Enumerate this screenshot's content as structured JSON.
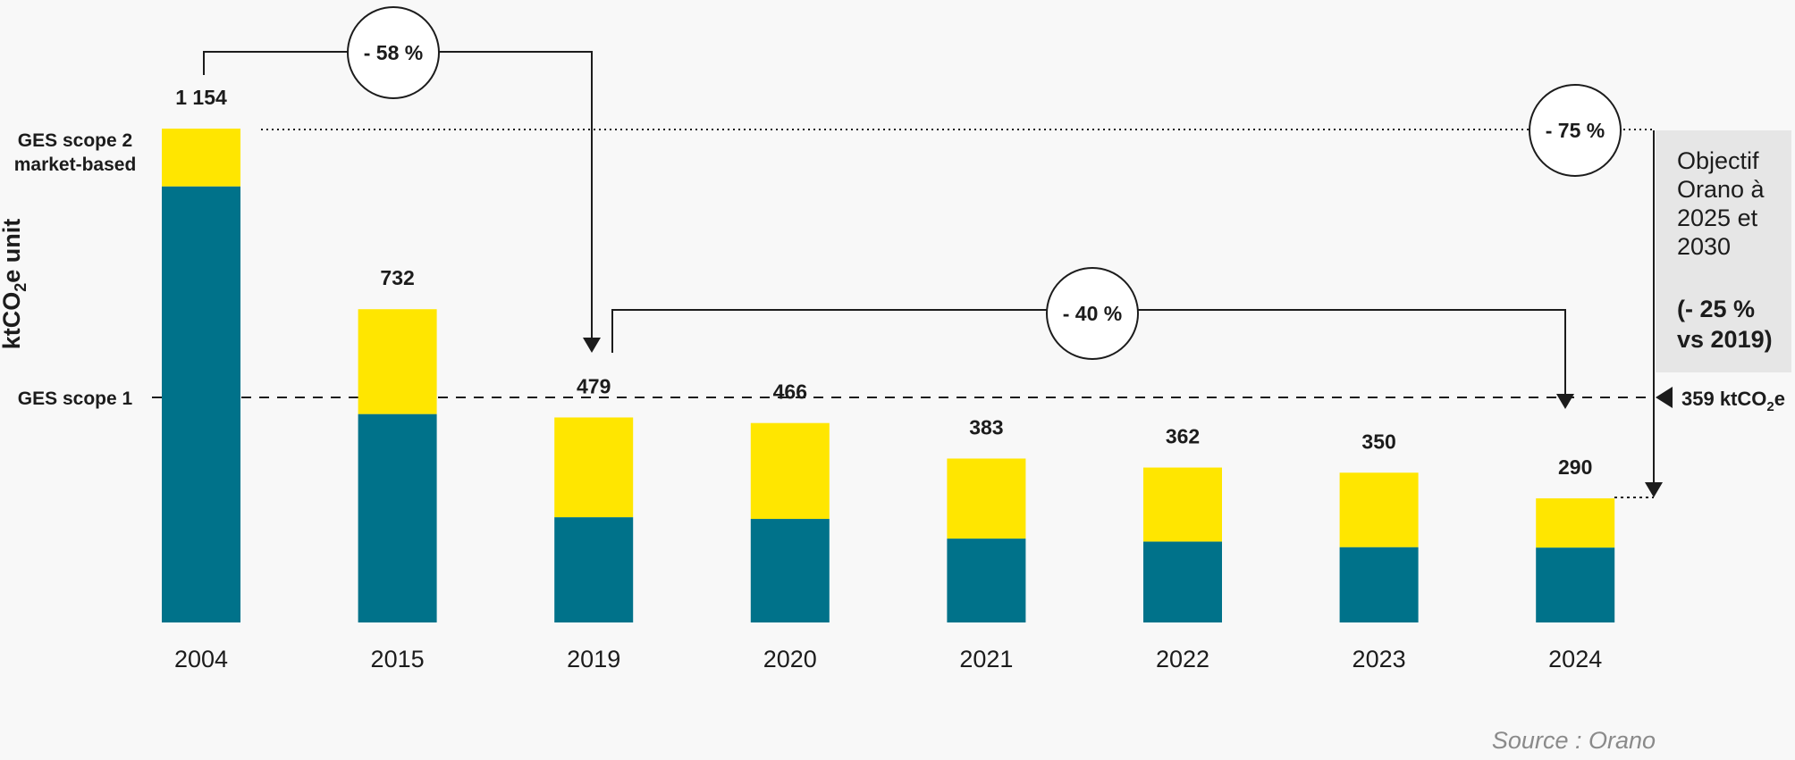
{
  "colors": {
    "scope1": "#00728a",
    "scope2": "#ffe600",
    "text": "#1c1c1c",
    "objective_box": "#e6e6e6",
    "background": "#f8f8f8"
  },
  "chart_data": {
    "type": "bar",
    "stacked": true,
    "categories": [
      "2004",
      "2015",
      "2019",
      "2020",
      "2021",
      "2022",
      "2023",
      "2024"
    ],
    "totals": [
      "1 154",
      "732",
      "479",
      "466",
      "383",
      "362",
      "350",
      "290"
    ],
    "series": [
      {
        "name": "GES scope 1",
        "values": [
          1019,
          487,
          246,
          242,
          196,
          189,
          176,
          175
        ]
      },
      {
        "name": "GES scope 2 market-based",
        "values": [
          135,
          245,
          233,
          224,
          187,
          173,
          174,
          115
        ]
      }
    ],
    "ylabel": "ktCO2e unit",
    "ylim": [
      0,
      1154
    ],
    "reference_lines": [
      {
        "label": "GES scope 2 market-based",
        "value": 1154,
        "style": "dotted"
      },
      {
        "label": "GES scope 1",
        "value": 525,
        "style": "dashed"
      }
    ],
    "annotations": [
      {
        "text": "- 58 %",
        "from": "2004",
        "to": "2019"
      },
      {
        "text": "- 40 %",
        "from": "2019",
        "to": "2024"
      },
      {
        "text": "- 75 %",
        "from": "2004",
        "to": "2024"
      }
    ],
    "target_value": "359 ktCO2e",
    "objective": {
      "lines": [
        "Objectif",
        "Orano à",
        "2025 et",
        "2030"
      ],
      "highlight": [
        "(- 25 %",
        "vs 2019)"
      ]
    },
    "source": "Source : Orano"
  }
}
